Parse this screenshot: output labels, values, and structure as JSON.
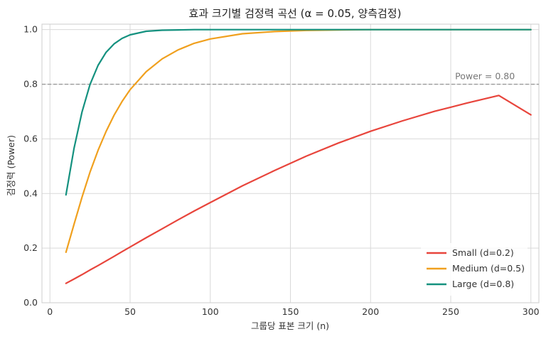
{
  "chart_data": {
    "type": "line",
    "title": "효과 크기별 검정력 곡선 (α  = 0.05, 양측검정)",
    "xlabel": "그룹당 표본 크기 (n)",
    "ylabel": "검정력 (Power)",
    "xlim": [
      -5,
      305
    ],
    "ylim": [
      0,
      1.02
    ],
    "x_ticks": [
      0,
      50,
      100,
      150,
      200,
      250,
      300
    ],
    "y_ticks": [
      0.0,
      0.2,
      0.4,
      0.6,
      0.8,
      1.0
    ],
    "x_tick_labels": [
      "0",
      "50",
      "100",
      "150",
      "200",
      "250",
      "300"
    ],
    "y_tick_labels": [
      "0.0",
      "0.2",
      "0.4",
      "0.6",
      "0.8",
      "1.0"
    ],
    "grid": true,
    "legend_position": "bottom-right",
    "reference_line": {
      "y": 0.8,
      "label": "Power = 0.80",
      "color": "#999999",
      "style": "dashed"
    },
    "x": [
      10,
      15,
      20,
      25,
      30,
      35,
      40,
      45,
      50,
      60,
      70,
      80,
      90,
      100,
      120,
      140,
      160,
      180,
      200,
      220,
      240,
      260,
      280,
      300
    ],
    "series": [
      {
        "name": "Small (d=0.2)",
        "color": "#e8453c",
        "values": [
          0.071,
          0.087,
          0.103,
          0.12,
          0.136,
          0.153,
          0.17,
          0.187,
          0.204,
          0.238,
          0.271,
          0.304,
          0.336,
          0.367,
          0.428,
          0.484,
          0.537,
          0.585,
          0.628,
          0.666,
          0.701,
          0.731,
          0.759,
          0.688
        ]
      },
      {
        "name": "Medium (d=0.5)",
        "color": "#f0a01e",
        "values": [
          0.185,
          0.287,
          0.387,
          0.478,
          0.558,
          0.627,
          0.687,
          0.737,
          0.78,
          0.846,
          0.893,
          0.926,
          0.95,
          0.966,
          0.985,
          0.993,
          0.997,
          0.999,
          1.0,
          1.0,
          1.0,
          1.0,
          1.0,
          1.0
        ]
      },
      {
        "name": "Large (d=0.8)",
        "color": "#14917f",
        "values": [
          0.395,
          0.565,
          0.699,
          0.799,
          0.869,
          0.917,
          0.948,
          0.968,
          0.981,
          0.994,
          0.998,
          0.999,
          1.0,
          1.0,
          1.0,
          1.0,
          1.0,
          1.0,
          1.0,
          1.0,
          1.0,
          1.0,
          1.0,
          1.0
        ]
      }
    ]
  }
}
